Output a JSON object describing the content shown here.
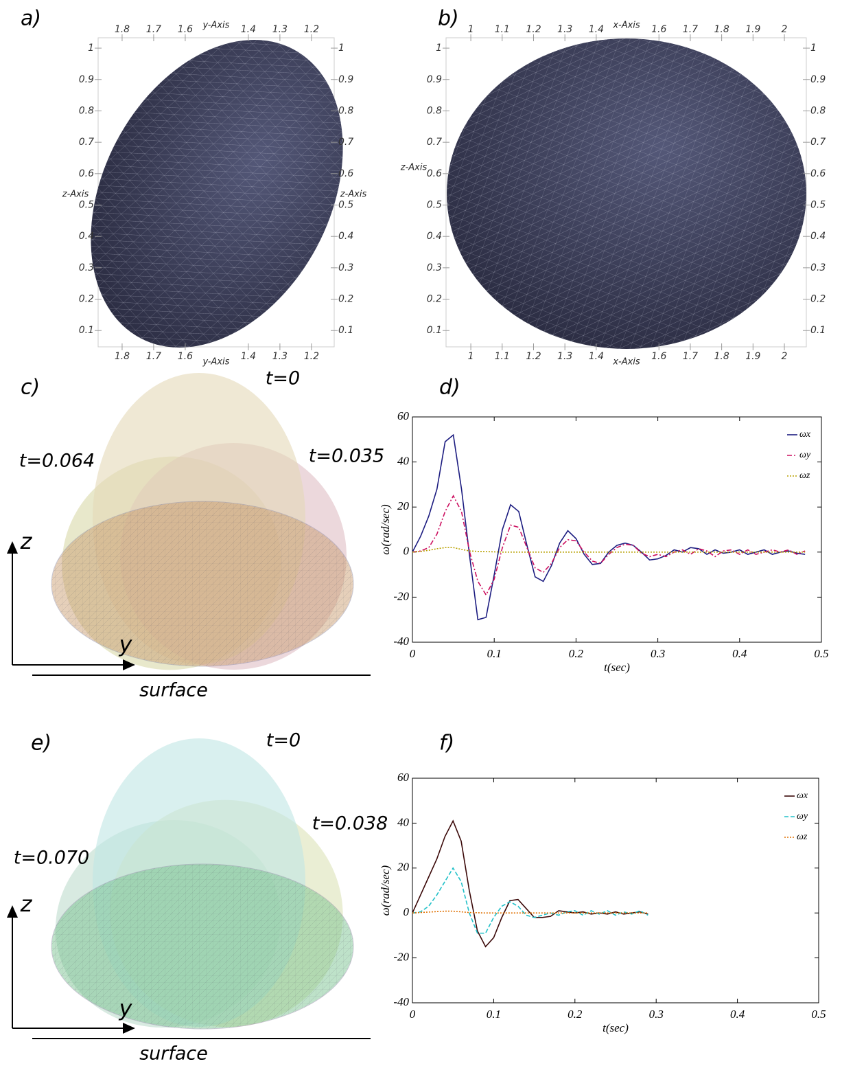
{
  "panel_a": {
    "label": "a)",
    "h_axis_title": "y-Axis",
    "v_axis_title": "z-Axis",
    "h_range": [
      1.876,
      1.128
    ],
    "h_ticks": [
      1.8,
      1.7,
      1.6,
      1.4,
      1.3,
      1.2
    ],
    "v_range": [
      0.048,
      1.033
    ],
    "v_ticks": [
      1,
      0.9,
      0.8,
      0.7,
      0.6,
      0.5,
      0.4,
      0.3,
      0.2,
      0.1
    ]
  },
  "panel_b": {
    "label": "b)",
    "h_axis_title": "x-Axis",
    "v_axis_title": "z-Axis",
    "h_range": [
      0.921,
      2.07
    ],
    "h_ticks": [
      1,
      1.1,
      1.2,
      1.3,
      1.4,
      1.6,
      1.7,
      1.8,
      1.9,
      2
    ],
    "v_range": [
      0.048,
      1.033
    ],
    "v_ticks": [
      1,
      0.9,
      0.8,
      0.7,
      0.6,
      0.5,
      0.4,
      0.3,
      0.2,
      0.1
    ]
  },
  "panel_c": {
    "label": "c)",
    "times": [
      "t=0",
      "t=0.064",
      "t=0.035"
    ],
    "z_label": "z",
    "y_label": "y",
    "surface_label": "surface"
  },
  "panel_e": {
    "label": "e)",
    "times": [
      "t=0",
      "t=0.070",
      "t=0.038"
    ],
    "z_label": "z",
    "y_label": "y",
    "surface_label": "surface"
  },
  "chart_data": [
    {
      "type": "line",
      "panel_label": "d)",
      "xlabel": "t(sec)",
      "ylabel": "ω(rad/sec)",
      "xlim": [
        0,
        0.5
      ],
      "xticks": [
        0,
        0.1,
        0.2,
        0.3,
        0.4,
        0.5
      ],
      "ylim": [
        -40,
        60
      ],
      "yticks": [
        -40,
        -20,
        0,
        20,
        40,
        60
      ],
      "legend": "upper right",
      "x": [
        0,
        0.01,
        0.02,
        0.03,
        0.04,
        0.05,
        0.06,
        0.07,
        0.08,
        0.09,
        0.1,
        0.11,
        0.12,
        0.13,
        0.14,
        0.15,
        0.16,
        0.17,
        0.18,
        0.19,
        0.2,
        0.21,
        0.22,
        0.23,
        0.24,
        0.25,
        0.26,
        0.27,
        0.28,
        0.29,
        0.3,
        0.31,
        0.32,
        0.33,
        0.34,
        0.35,
        0.36,
        0.37,
        0.38,
        0.39,
        0.4,
        0.41,
        0.42,
        0.43,
        0.44,
        0.45,
        0.46,
        0.47,
        0.48
      ],
      "series": [
        {
          "name": "ωx",
          "color": "#1c1c80",
          "style": "solid",
          "values": [
            0,
            7,
            16,
            28,
            49,
            52,
            28,
            -2,
            -30,
            -29,
            -10,
            10,
            21,
            18,
            3,
            -11,
            -13,
            -6,
            4,
            9.5,
            6,
            -1,
            -5.5,
            -5,
            0,
            3,
            4,
            3,
            0,
            -3.5,
            -3,
            -1.5,
            1,
            0,
            2,
            1.5,
            -1,
            1,
            -0.5,
            0,
            1,
            -1,
            0,
            1,
            -1,
            0,
            0.5,
            -0.5,
            -1
          ]
        },
        {
          "name": "ωy",
          "color": "#cc1060",
          "style": "dashdot",
          "values": [
            0,
            0.5,
            2,
            8,
            18,
            25,
            18,
            0,
            -13,
            -19,
            -12,
            2,
            12,
            11,
            2,
            -7,
            -9,
            -5,
            2,
            5.5,
            5,
            0,
            -4,
            -5,
            -1,
            2,
            3.5,
            3,
            -0.5,
            -2,
            -1,
            -2,
            0,
            1,
            -1,
            1.5,
            0.5,
            -2,
            0.5,
            1,
            -1,
            1,
            -1,
            0,
            1,
            0,
            1,
            -1,
            0.5
          ]
        },
        {
          "name": "ωz",
          "color": "#b8a000",
          "style": "dotted",
          "values": [
            0,
            0.3,
            0.8,
            1.5,
            2,
            2,
            1.2,
            0.5,
            0.3,
            0.2,
            0.1,
            0,
            0,
            0,
            0,
            0,
            0,
            0,
            0,
            0,
            0,
            0,
            0,
            0,
            0,
            0,
            0,
            0,
            0,
            0,
            0,
            0,
            0,
            0,
            0,
            0,
            0,
            0,
            0,
            0,
            0,
            0,
            0,
            0,
            0,
            0,
            0,
            0,
            0
          ]
        }
      ]
    },
    {
      "type": "line",
      "panel_label": "f)",
      "xlabel": "t(sec)",
      "ylabel": "ω(rad/sec)",
      "xlim": [
        0,
        0.5
      ],
      "xticks": [
        0,
        0.1,
        0.2,
        0.3,
        0.4,
        0.5
      ],
      "ylim": [
        -40,
        60
      ],
      "yticks": [
        -40,
        -20,
        0,
        20,
        40,
        60
      ],
      "legend": "upper right",
      "x": [
        0,
        0.01,
        0.02,
        0.03,
        0.04,
        0.05,
        0.06,
        0.07,
        0.08,
        0.09,
        0.1,
        0.11,
        0.12,
        0.13,
        0.14,
        0.15,
        0.16,
        0.17,
        0.18,
        0.19,
        0.2,
        0.21,
        0.22,
        0.23,
        0.24,
        0.25,
        0.26,
        0.27,
        0.28,
        0.29
      ],
      "series": [
        {
          "name": "ωx",
          "color": "#3a0808",
          "style": "solid",
          "values": [
            0,
            8,
            16,
            24,
            34,
            41,
            32,
            10,
            -8,
            -15,
            -11,
            -2,
            5.5,
            6,
            2,
            -2,
            -2,
            -1.5,
            1,
            0.5,
            0,
            0.5,
            -0.5,
            0,
            -0.5,
            0.5,
            -0.5,
            0,
            0.5,
            -0.5
          ]
        },
        {
          "name": "ωy",
          "color": "#20c0c8",
          "style": "dashed",
          "values": [
            0,
            0.5,
            3,
            8,
            14,
            20,
            14,
            0,
            -9,
            -9,
            -2,
            3,
            5,
            3,
            -1,
            -2,
            -1,
            0,
            -1,
            0.5,
            1,
            -1,
            1,
            -0.5,
            1,
            -1,
            0.5,
            -0.5,
            1,
            -1
          ]
        },
        {
          "name": "ωz",
          "color": "#e07000",
          "style": "dotted",
          "values": [
            0,
            0.2,
            0.4,
            0.6,
            0.8,
            0.8,
            0.5,
            0.2,
            0.1,
            0,
            0,
            0,
            0,
            0,
            0,
            0,
            0,
            0,
            0,
            0,
            0,
            0,
            0,
            0,
            0,
            0,
            0,
            0,
            0,
            0
          ]
        }
      ]
    }
  ]
}
